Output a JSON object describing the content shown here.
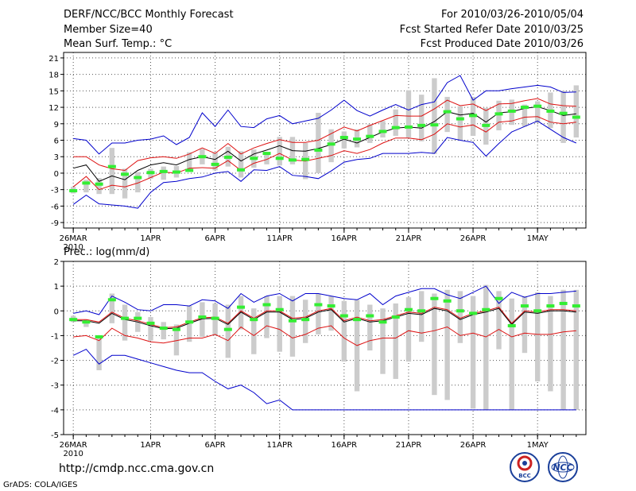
{
  "header": {
    "title": "DERF/NCC/BCC Monthly Forecast",
    "member_size": "Member Size=40",
    "variable": "Mean Surf. Temp.: °C",
    "fcst_period": "For 2010/03/26-2010/05/04",
    "fcst_started": "Fcst Started Refer Date 2010/03/25",
    "fcst_produced": "Fcst Produced Date 2010/03/26"
  },
  "footer": {
    "url": "http://cmdp.ncc.cma.gov.cn",
    "credit": "GrADS: COLA/IGES",
    "logo_bcc": "BCC",
    "logo_ncc": "NCC"
  },
  "colors": {
    "box": "#cccccc",
    "median": "#33ee33",
    "mean": "#000000",
    "std": "#dd1111",
    "range": "#0000cc",
    "grid": "#555555"
  },
  "chart_data": [
    {
      "type": "box",
      "title": "Mean Surf. Temp.: °C",
      "xlabel": "",
      "ylabel": "°C",
      "x_ticks": [
        "26MAR",
        "1APR",
        "6APR",
        "11APR",
        "16APR",
        "21APR",
        "26APR",
        "1MAY"
      ],
      "x_tick_days": [
        0,
        6,
        11,
        16,
        21,
        26,
        31,
        36
      ],
      "x_year_label": "2010",
      "ylim": [
        -10,
        22
      ],
      "yticks": [
        -9,
        -6,
        -3,
        0,
        3,
        6,
        9,
        12,
        15,
        18,
        21
      ],
      "days": 40,
      "median": [
        -3.2,
        -1.8,
        -2,
        1.2,
        -0.2,
        -0.8,
        0.1,
        0.3,
        0.2,
        0.5,
        3,
        1.6,
        2.9,
        0.6,
        2.7,
        3.6,
        2.7,
        2.4,
        2.5,
        4.2,
        5.3,
        6.5,
        6.2,
        6.7,
        7.6,
        8.3,
        8.4,
        8.7,
        8.8,
        11.2,
        9.9,
        10.5,
        8.7,
        10.8,
        11.3,
        12,
        12.2,
        11.3,
        10.9,
        10.2
      ],
      "box_low": [
        -3.7,
        -3.5,
        -3.8,
        -3.8,
        -4.6,
        -3.5,
        -1,
        -1.2,
        -0.8,
        0.4,
        1.6,
        0.5,
        1.2,
        -0.8,
        1,
        1.6,
        1.4,
        1.6,
        -1.1,
        0,
        2,
        4.5,
        4.7,
        5.5,
        6.5,
        6.8,
        6.5,
        5.8,
        3.5,
        7.5,
        6,
        6.8,
        5.2,
        7.8,
        8.8,
        8.5,
        9.2,
        8.2,
        5.5,
        6.5
      ],
      "box_high": [
        -2.5,
        -1.2,
        -0.9,
        4.6,
        0.8,
        0.2,
        0.8,
        1.2,
        1.3,
        3.8,
        4.4,
        3.8,
        4.8,
        4,
        4.3,
        3.4,
        6.6,
        6.6,
        5.5,
        11,
        8,
        7.6,
        8,
        8.9,
        9.5,
        11.6,
        15.1,
        14.3,
        17.3,
        13.9,
        12.2,
        13.9,
        11.9,
        13.2,
        13.4,
        12.5,
        13.1,
        14.7,
        15,
        16
      ],
      "mean": [
        0.9,
        1.5,
        -1.5,
        -0.5,
        -1.2,
        0.5,
        1.5,
        1.9,
        1.5,
        2.5,
        3,
        2.5,
        4,
        2.2,
        3.5,
        4.2,
        5,
        4.1,
        4,
        4.5,
        5.2,
        6.2,
        5.5,
        6.5,
        7.5,
        8.2,
        8.4,
        8.2,
        9.4,
        11.2,
        10.6,
        10.9,
        9.3,
        11,
        11.2,
        11.8,
        12.1,
        11.4,
        10.5,
        10.8
      ],
      "std_upper": [
        3,
        3,
        1.5,
        0.8,
        0.5,
        2.3,
        2.8,
        3,
        2.7,
        3.5,
        4.6,
        3.6,
        5.4,
        3.5,
        4.6,
        5.4,
        6.1,
        5.6,
        5.6,
        6,
        7.2,
        8.4,
        7.7,
        8.7,
        9.6,
        10.5,
        10.4,
        10.4,
        11.7,
        13.3,
        12.3,
        12.6,
        11.4,
        12.6,
        12.7,
        13.2,
        13.6,
        12.6,
        12.3,
        12.2
      ],
      "std_lower": [
        -2.5,
        -0.6,
        -3,
        -2.2,
        -2.5,
        -1.8,
        -0.8,
        0.2,
        0,
        0.9,
        1,
        0.9,
        2.3,
        0.5,
        1.8,
        2.5,
        3.6,
        2.4,
        2.2,
        2.7,
        3.2,
        4.1,
        3.6,
        4.3,
        5.5,
        6.4,
        6.4,
        6.1,
        7.1,
        9,
        8.4,
        8.8,
        7.5,
        9.3,
        9.5,
        10.2,
        10.3,
        9.3,
        9,
        9.3
      ],
      "max": [
        6.3,
        6,
        3.5,
        5.5,
        5.5,
        6,
        6.2,
        6.8,
        5.2,
        6.5,
        11,
        8.5,
        11.5,
        8.5,
        8.3,
        9.9,
        10.5,
        9,
        9.5,
        10,
        11.5,
        13.3,
        11.4,
        10.4,
        11.5,
        12.5,
        11.5,
        12.5,
        13,
        16.5,
        17.8,
        13.3,
        15,
        15,
        15.4,
        15.7,
        16,
        15.7,
        14.7,
        14.8
      ],
      "min": [
        -5.7,
        -4,
        -5.6,
        -5.8,
        -6,
        -6.4,
        -3.5,
        -1.7,
        -1.5,
        -1,
        -0.7,
        0,
        0.3,
        -1.5,
        0.6,
        0.5,
        1.2,
        -0.4,
        -0.6,
        -1,
        0.4,
        2,
        2.5,
        2.7,
        3.6,
        3.6,
        3.6,
        3.8,
        3.6,
        6.5,
        6,
        5.6,
        3.1,
        5.4,
        7.5,
        8.5,
        9.5,
        8,
        6.5,
        5.5
      ]
    },
    {
      "type": "box",
      "title": "Prec.: log(mm/d)",
      "xlabel": "",
      "ylabel": "log(mm/d)",
      "x_ticks": [
        "26MAR",
        "1APR",
        "6APR",
        "11APR",
        "16APR",
        "21APR",
        "26APR",
        "1MAY"
      ],
      "x_tick_days": [
        0,
        6,
        11,
        16,
        21,
        26,
        31,
        36
      ],
      "x_year_label": "2010",
      "ylim": [
        -5,
        2
      ],
      "yticks": [
        -5,
        -4,
        -3,
        -2,
        -1,
        0,
        1,
        2
      ],
      "days": 40,
      "median": [
        -0.35,
        -0.45,
        -1.05,
        0.45,
        -0.3,
        -0.3,
        -0.5,
        -0.7,
        -0.75,
        -0.45,
        -0.25,
        -0.3,
        -0.75,
        0.15,
        -0.35,
        0.25,
        0.05,
        -0.4,
        -0.35,
        0.25,
        0.2,
        -0.2,
        -0.35,
        -0.2,
        -0.45,
        -0.25,
        0.05,
        0,
        0.5,
        0.4,
        0,
        -0.1,
        0.05,
        0.5,
        -0.6,
        0.2,
        0,
        0.2,
        0.3,
        0.2
      ],
      "box_low": [
        -0.45,
        -0.65,
        -2.4,
        -0.5,
        -1.2,
        -0.85,
        -1.2,
        -1.15,
        -1.8,
        -1.25,
        -1.05,
        -1,
        -1.9,
        -0.75,
        -1.75,
        -1.1,
        -1.65,
        -1.85,
        -1.3,
        -0.95,
        -0.8,
        -2.05,
        -3.25,
        -1.6,
        -2.55,
        -2.75,
        -2.05,
        -1.25,
        -3.4,
        -3.6,
        -1.3,
        -3.95,
        -4,
        -1.55,
        -4,
        -1.7,
        -2.85,
        -3.25,
        -4,
        -4
      ],
      "box_high": [
        -0.2,
        -0.35,
        -1,
        0.7,
        0.25,
        -0.05,
        -0.25,
        -0.45,
        -0.55,
        0.2,
        0.35,
        0.3,
        0.25,
        0.6,
        0.1,
        0.6,
        0.6,
        0.6,
        0.45,
        0.7,
        0.6,
        0.4,
        0.45,
        0.25,
        0.1,
        0.3,
        0.55,
        0.8,
        0.7,
        0.85,
        0.8,
        0.6,
        1.05,
        0.8,
        0.5,
        0.6,
        0.75,
        0.6,
        0.85,
        0.85
      ],
      "mean": [
        -0.4,
        -0.4,
        -0.5,
        -0.1,
        -0.35,
        -0.45,
        -0.6,
        -0.72,
        -0.7,
        -0.5,
        -0.32,
        -0.3,
        -0.55,
        -0.05,
        -0.35,
        -0.05,
        -0.05,
        -0.35,
        -0.3,
        -0.05,
        0.05,
        -0.45,
        -0.3,
        -0.45,
        -0.4,
        -0.25,
        -0.1,
        -0.15,
        0.1,
        0,
        -0.35,
        -0.15,
        -0.05,
        0.1,
        -0.55,
        -0.05,
        -0.1,
        0,
        0,
        -0.05
      ],
      "std_upper": [
        -0.35,
        -0.35,
        -0.45,
        -0.05,
        -0.3,
        -0.4,
        -0.55,
        -0.68,
        -0.65,
        -0.45,
        -0.28,
        -0.25,
        -0.5,
        0,
        -0.3,
        0,
        0,
        -0.3,
        -0.25,
        0,
        0.1,
        -0.4,
        -0.25,
        -0.4,
        -0.35,
        -0.2,
        -0.05,
        -0.1,
        0.15,
        0.05,
        -0.3,
        -0.1,
        0,
        0.15,
        -0.5,
        0,
        -0.05,
        0.05,
        0.05,
        0
      ],
      "std_lower": [
        -1.05,
        -1.0,
        -1.2,
        -0.7,
        -1.0,
        -1.1,
        -1.25,
        -1.3,
        -1.2,
        -1.1,
        -1.1,
        -0.95,
        -1.2,
        -0.65,
        -1.0,
        -0.6,
        -0.75,
        -1.1,
        -0.95,
        -0.7,
        -0.6,
        -1.1,
        -1.4,
        -1.2,
        -1.1,
        -1.1,
        -0.8,
        -0.9,
        -0.8,
        -0.65,
        -1.0,
        -0.9,
        -1.05,
        -0.75,
        -1.05,
        -0.9,
        -0.95,
        -0.95,
        -0.85,
        -0.8
      ],
      "max": [
        -0.1,
        0,
        -0.15,
        0.6,
        0.35,
        0.05,
        0,
        0.25,
        0.25,
        0.2,
        0.45,
        0.4,
        0.1,
        0.7,
        0.35,
        0.6,
        0.7,
        0.4,
        0.7,
        0.7,
        0.6,
        0.5,
        0.45,
        0.7,
        0.25,
        0.6,
        0.75,
        0.9,
        0.9,
        0.65,
        0.5,
        0.75,
        1,
        0.3,
        0.75,
        0.55,
        0.7,
        0.7,
        0.75,
        0.8
      ],
      "min": [
        -1.8,
        -1.55,
        -2.15,
        -1.8,
        -1.8,
        -1.95,
        -2.1,
        -2.25,
        -2.4,
        -2.5,
        -2.5,
        -2.85,
        -3.15,
        -3,
        -3.3,
        -3.75,
        -3.6,
        -4,
        -4,
        -4,
        -4,
        -4,
        -4,
        -4,
        -4,
        -4,
        -4,
        -4,
        -4,
        -4,
        -4,
        -4,
        -4,
        -4,
        -4,
        -4,
        -4,
        -4,
        -4,
        -4
      ]
    }
  ]
}
